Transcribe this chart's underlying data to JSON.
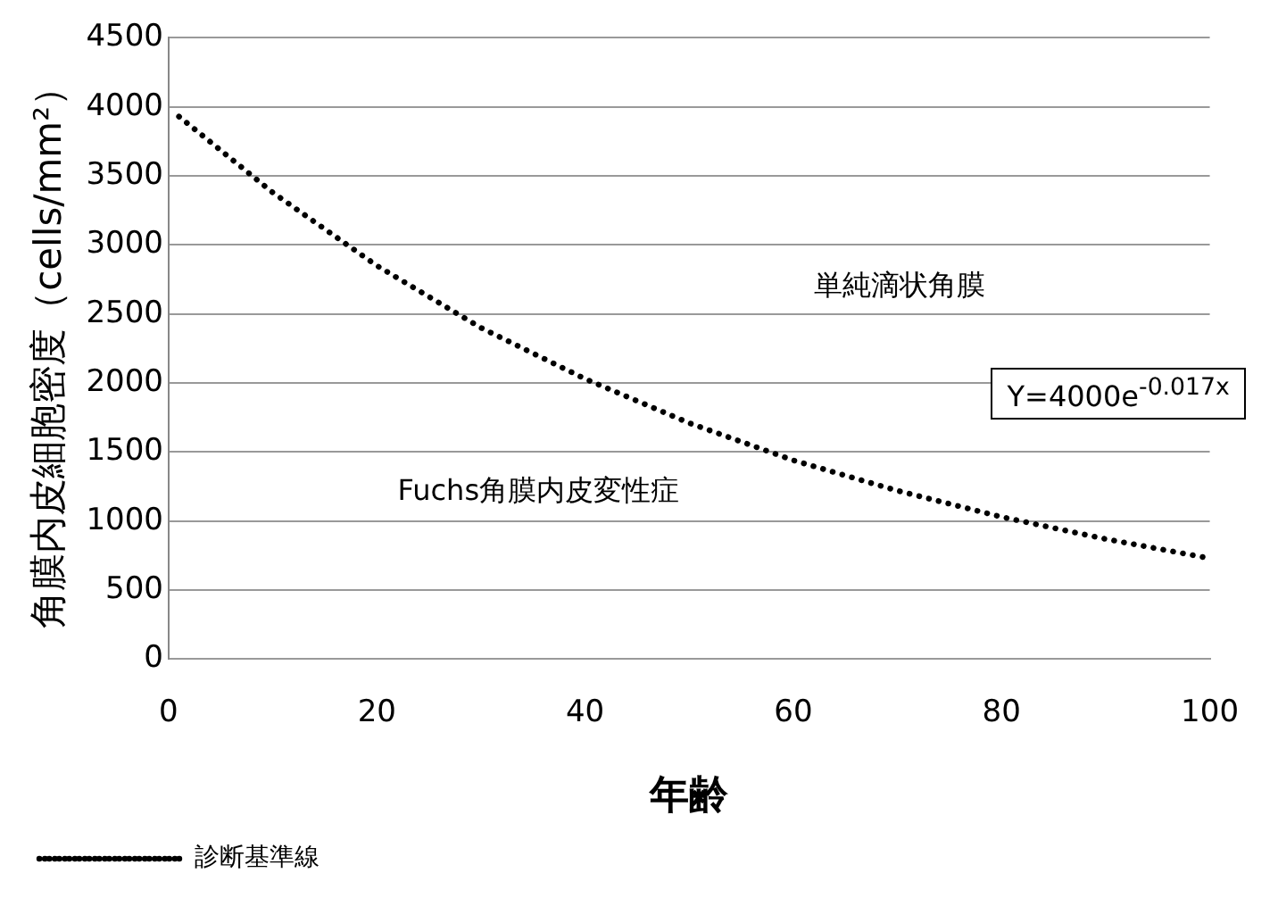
{
  "chart_data": {
    "type": "line",
    "xlabel": "年齢",
    "ylabel": "角膜内皮細胞密度（cells/mm²）",
    "x": [
      1,
      10,
      20,
      30,
      40,
      50,
      60,
      70,
      80,
      90,
      100
    ],
    "series": [
      {
        "name": "診断基準線",
        "color": "#000000",
        "values": [
          3930,
          3380,
          2850,
          2400,
          2030,
          1710,
          1440,
          1220,
          1030,
          870,
          730
        ]
      }
    ],
    "xlim": [
      0,
      100
    ],
    "xticks": [
      0,
      20,
      40,
      60,
      80,
      100
    ],
    "ylim": [
      0,
      4500
    ],
    "yticks": [
      0,
      500,
      1000,
      1500,
      2000,
      2500,
      3000,
      3500,
      4000,
      4500
    ],
    "grid": "y",
    "legend": "bottom",
    "marker": "none",
    "line_style": "dotted",
    "annotations": [
      "単純滴状角膜",
      "Fuchs角膜内皮変性症",
      "Y=4000e$^{-0.017x}$"
    ]
  }
}
